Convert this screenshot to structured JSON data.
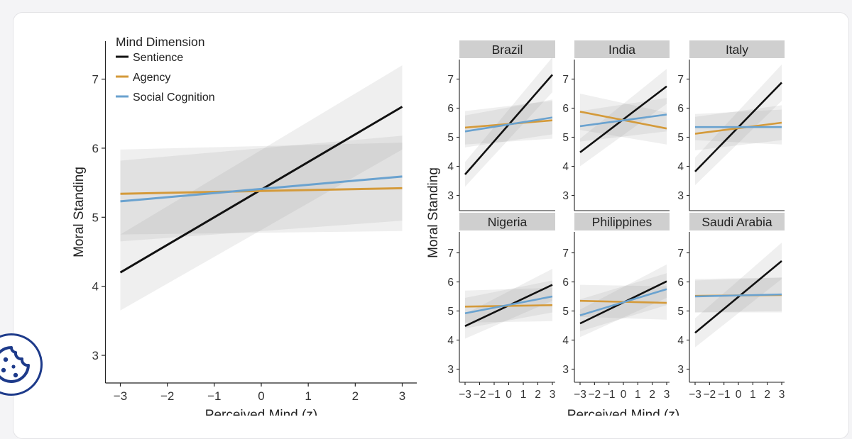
{
  "legend": {
    "title": "Mind Dimension",
    "entries": [
      {
        "key": "sentience",
        "label": "Sentience",
        "color": "#111111"
      },
      {
        "key": "agency",
        "label": "Agency",
        "color": "#d49a3a"
      },
      {
        "key": "social",
        "label": "Social Cognition",
        "color": "#6aa2cf"
      }
    ]
  },
  "chart_data": [
    {
      "type": "line",
      "panel": "overall",
      "xlabel": "Perceived Mind (z)",
      "ylabel": "Moral Standing",
      "xlim": [
        -3,
        3
      ],
      "ylim": [
        2.6,
        7.55
      ],
      "xticks": [
        -3,
        -2,
        -1,
        0,
        1,
        2,
        3
      ],
      "yticks": [
        3,
        4,
        5,
        6,
        7
      ],
      "legend_position": "top-left",
      "grid": false,
      "series": [
        {
          "name": "Sentience",
          "x": [
            -3,
            3
          ],
          "y": [
            4.2,
            6.6
          ],
          "ci_low": [
            3.65,
            5.98
          ],
          "ci_high": [
            4.75,
            7.2
          ]
        },
        {
          "name": "Agency",
          "x": [
            -3,
            3
          ],
          "y": [
            5.34,
            5.42
          ],
          "ci_low": [
            4.75,
            4.8
          ],
          "ci_high": [
            5.98,
            6.08
          ]
        },
        {
          "name": "Social Cognition",
          "x": [
            -3,
            3
          ],
          "y": [
            5.23,
            5.59
          ],
          "ci_low": [
            4.65,
            4.95
          ],
          "ci_high": [
            5.82,
            6.18
          ]
        }
      ]
    },
    {
      "type": "line",
      "panel": "by-country",
      "xlabel": "Perceived Mind (z)",
      "ylabel": "Moral Standing",
      "xlim": [
        -3,
        3
      ],
      "ylim": [
        2.6,
        7.7
      ],
      "xticks": [
        -3,
        -2,
        -1,
        0,
        1,
        2,
        3
      ],
      "yticks": [
        3,
        4,
        5,
        6,
        7
      ],
      "facets": [
        {
          "title": "Brazil",
          "series": [
            {
              "name": "Sentience",
              "y": [
                3.72,
                7.15
              ],
              "ci_low": [
                3.3,
                6.55
              ],
              "ci_high": [
                4.15,
                7.75
              ]
            },
            {
              "name": "Agency",
              "y": [
                5.33,
                5.58
              ],
              "ci_low": [
                4.75,
                4.95
              ],
              "ci_high": [
                5.9,
                6.25
              ]
            },
            {
              "name": "Social Cognition",
              "y": [
                5.2,
                5.68
              ],
              "ci_low": [
                4.65,
                5.1
              ],
              "ci_high": [
                5.75,
                6.3
              ]
            }
          ]
        },
        {
          "title": "India",
          "series": [
            {
              "name": "Sentience",
              "y": [
                4.48,
                6.75
              ],
              "ci_low": [
                4.0,
                6.15
              ],
              "ci_high": [
                4.95,
                7.35
              ]
            },
            {
              "name": "Agency",
              "y": [
                5.88,
                5.3
              ],
              "ci_low": [
                5.25,
                4.75
              ],
              "ci_high": [
                6.5,
                5.85
              ]
            },
            {
              "name": "Social Cognition",
              "y": [
                5.38,
                5.78
              ],
              "ci_low": [
                4.85,
                5.2
              ],
              "ci_high": [
                5.9,
                6.35
              ]
            }
          ]
        },
        {
          "title": "Italy",
          "series": [
            {
              "name": "Sentience",
              "y": [
                3.82,
                6.88
              ],
              "ci_low": [
                3.35,
                6.25
              ],
              "ci_high": [
                4.3,
                7.5
              ]
            },
            {
              "name": "Agency",
              "y": [
                5.12,
                5.5
              ],
              "ci_low": [
                4.55,
                4.9
              ],
              "ci_high": [
                5.7,
                6.1
              ]
            },
            {
              "name": "Social Cognition",
              "y": [
                5.35,
                5.35
              ],
              "ci_low": [
                4.9,
                4.75
              ],
              "ci_high": [
                5.8,
                5.95
              ]
            }
          ]
        },
        {
          "title": "Nigeria",
          "series": [
            {
              "name": "Sentience",
              "y": [
                4.48,
                5.9
              ],
              "ci_low": [
                4.05,
                5.35
              ],
              "ci_high": [
                4.9,
                6.45
              ]
            },
            {
              "name": "Agency",
              "y": [
                5.15,
                5.2
              ],
              "ci_low": [
                4.6,
                4.65
              ],
              "ci_high": [
                5.7,
                5.8
              ]
            },
            {
              "name": "Social Cognition",
              "y": [
                4.92,
                5.5
              ],
              "ci_low": [
                4.4,
                4.95
              ],
              "ci_high": [
                5.45,
                6.05
              ]
            }
          ]
        },
        {
          "title": "Philippines",
          "series": [
            {
              "name": "Sentience",
              "y": [
                4.57,
                6.02
              ],
              "ci_low": [
                4.1,
                5.45
              ],
              "ci_high": [
                5.05,
                6.6
              ]
            },
            {
              "name": "Agency",
              "y": [
                5.35,
                5.28
              ],
              "ci_low": [
                4.8,
                4.7
              ],
              "ci_high": [
                5.9,
                5.85
              ]
            },
            {
              "name": "Social Cognition",
              "y": [
                4.85,
                5.75
              ],
              "ci_low": [
                4.3,
                5.2
              ],
              "ci_high": [
                5.4,
                6.3
              ]
            }
          ]
        },
        {
          "title": "Saudi Arabia",
          "series": [
            {
              "name": "Sentience",
              "y": [
                4.25,
                6.72
              ],
              "ci_low": [
                3.75,
                6.1
              ],
              "ci_high": [
                4.75,
                7.35
              ]
            },
            {
              "name": "Agency",
              "y": [
                5.52,
                5.55
              ],
              "ci_low": [
                4.95,
                4.95
              ],
              "ci_high": [
                6.1,
                6.15
              ]
            },
            {
              "name": "Social Cognition",
              "y": [
                5.5,
                5.57
              ],
              "ci_low": [
                4.95,
                5.0
              ],
              "ci_high": [
                6.05,
                6.15
              ]
            }
          ]
        }
      ]
    }
  ],
  "cookie_button": {
    "icon": "cookie-icon"
  }
}
